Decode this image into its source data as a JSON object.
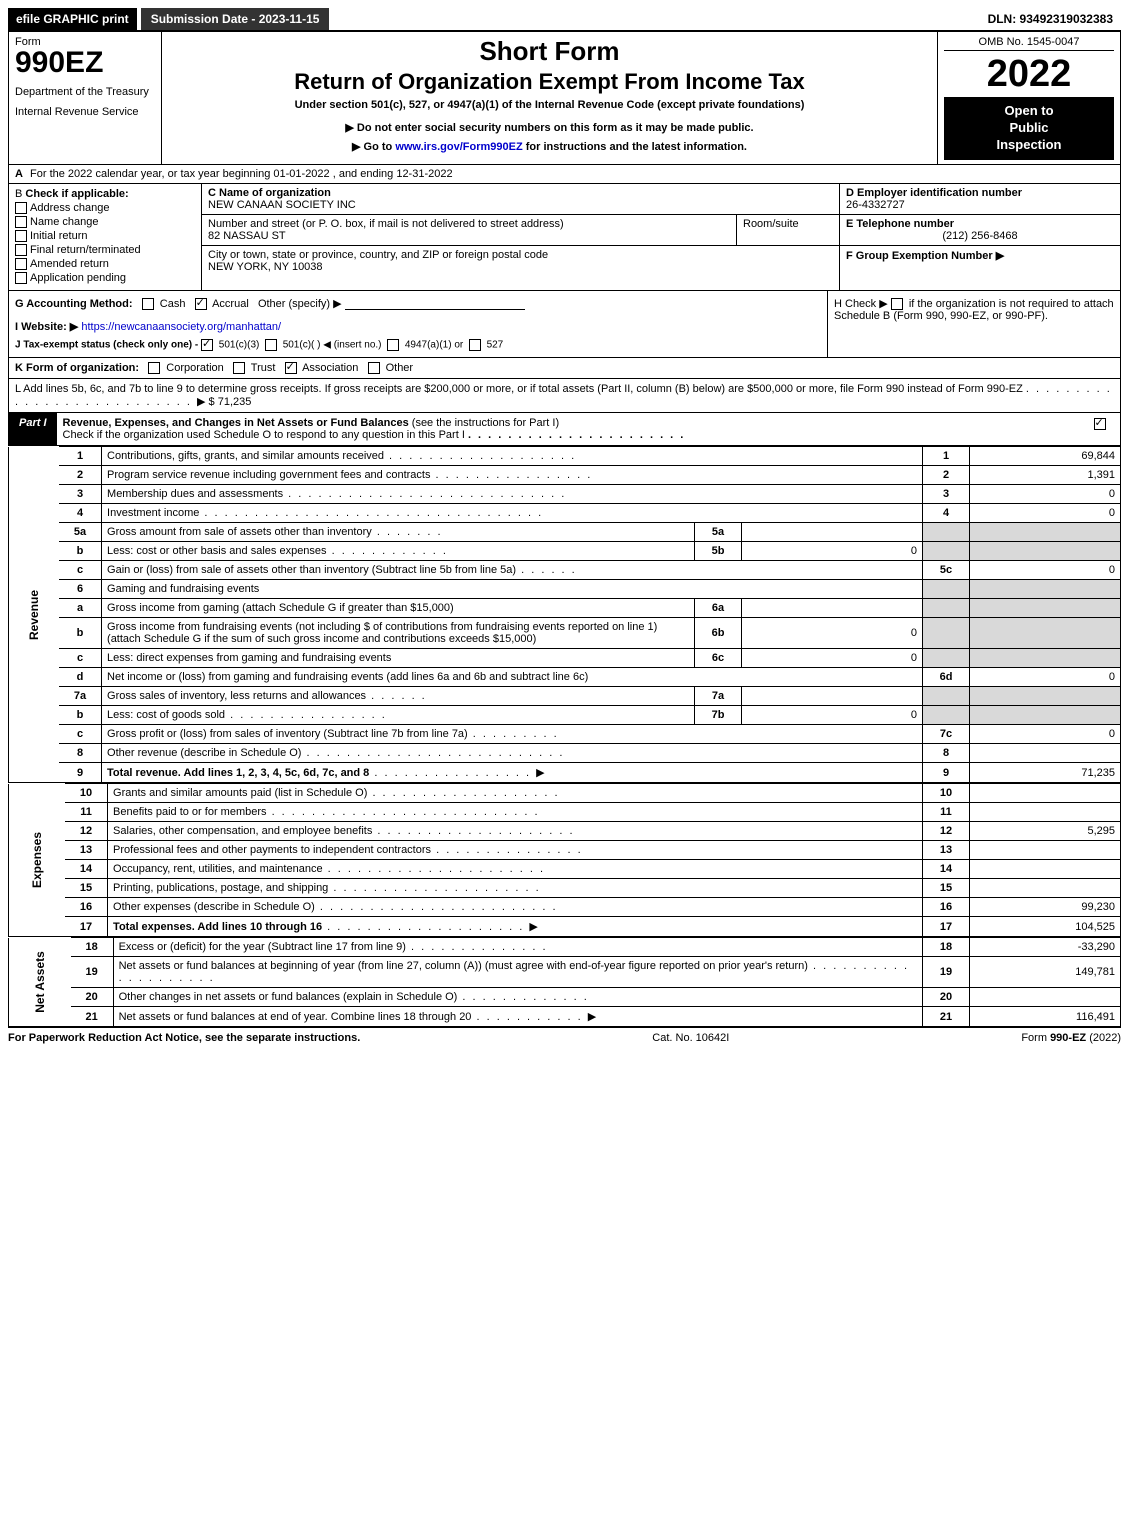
{
  "top": {
    "efile": "efile GRAPHIC print",
    "submission": "Submission Date - 2023-11-15",
    "dln": "DLN: 93492319032383"
  },
  "header": {
    "form_label": "Form",
    "form_no": "990EZ",
    "dept1": "Department of the Treasury",
    "dept2": "Internal Revenue Service",
    "short": "Short Form",
    "title": "Return of Organization Exempt From Income Tax",
    "under": "Under section 501(c), 527, or 4947(a)(1) of the Internal Revenue Code (except private foundations)",
    "notice1": "▶ Do not enter social security numbers on this form as it may be made public.",
    "notice2": "▶ Go to www.irs.gov/Form990EZ for instructions and the latest information.",
    "irs_link": "www.irs.gov/Form990EZ",
    "omb": "OMB No. 1545-0047",
    "year": "2022",
    "inspect1": "Open to",
    "inspect2": "Public",
    "inspect3": "Inspection"
  },
  "a": {
    "text": "For the 2022 calendar year, or tax year beginning 01-01-2022 , and ending 12-31-2022"
  },
  "b": {
    "head": "Check if applicable:",
    "opt1": "Address change",
    "opt2": "Name change",
    "opt3": "Initial return",
    "opt4": "Final return/terminated",
    "opt5": "Amended return",
    "opt6": "Application pending"
  },
  "c": {
    "name_lbl": "C Name of organization",
    "name": "NEW CANAAN SOCIETY INC",
    "street_lbl": "Number and street (or P. O. box, if mail is not delivered to street address)",
    "street": "82 NASSAU ST",
    "room_lbl": "Room/suite",
    "city_lbl": "City or town, state or province, country, and ZIP or foreign postal code",
    "city": "NEW YORK, NY  10038"
  },
  "d": {
    "lbl": "D Employer identification number",
    "val": "26-4332727"
  },
  "e": {
    "lbl": "E Telephone number",
    "val": "(212) 256-8468"
  },
  "f": {
    "lbl": "F Group Exemption Number  ▶"
  },
  "g": {
    "lbl": "G Accounting Method:",
    "cash": "Cash",
    "accrual": "Accrual",
    "other": "Other (specify) ▶"
  },
  "h": {
    "text1": "H  Check ▶",
    "text2": "if the organization is not required to attach Schedule B (Form 990, 990-EZ, or 990-PF)."
  },
  "i": {
    "lbl": "I Website: ▶",
    "url": "https://newcanaansociety.org/manhattan/"
  },
  "j": {
    "lbl": "J Tax-exempt status (check only one) -",
    "o1": "501(c)(3)",
    "o2": "501(c)(  )  ◀ (insert no.)",
    "o3": "4947(a)(1) or",
    "o4": "527"
  },
  "k": {
    "lbl": "K Form of organization:",
    "o1": "Corporation",
    "o2": "Trust",
    "o3": "Association",
    "o4": "Other"
  },
  "l": {
    "text": "L Add lines 5b, 6c, and 7b to line 9 to determine gross receipts. If gross receipts are $200,000 or more, or if total assets (Part II, column (B) below) are $500,000 or more, file Form 990 instead of Form 990-EZ",
    "amount": "$ 71,235"
  },
  "part1": {
    "tag": "Part I",
    "title": "Revenue, Expenses, and Changes in Net Assets or Fund Balances",
    "sub": "(see the instructions for Part I)",
    "sub2": "Check if the organization used Schedule O to respond to any question in this Part I"
  },
  "lines": [
    {
      "n": "1",
      "desc": "Contributions, gifts, grants, and similar amounts received",
      "col": "1",
      "val": "69,844"
    },
    {
      "n": "2",
      "desc": "Program service revenue including government fees and contracts",
      "col": "2",
      "val": "1,391"
    },
    {
      "n": "3",
      "desc": "Membership dues and assessments",
      "col": "3",
      "val": "0"
    },
    {
      "n": "4",
      "desc": "Investment income",
      "col": "4",
      "val": "0"
    },
    {
      "n": "5a",
      "desc": "Gross amount from sale of assets other than inventory",
      "sub": "5a",
      "subval": "",
      "shade_col": true
    },
    {
      "n": "b",
      "desc": "Less: cost or other basis and sales expenses",
      "sub": "5b",
      "subval": "0",
      "shade_col": true
    },
    {
      "n": "c",
      "desc": "Gain or (loss) from sale of assets other than inventory (Subtract line 5b from line 5a)",
      "col": "5c",
      "val": "0"
    },
    {
      "n": "6",
      "desc": "Gaming and fundraising events",
      "shade_col": true,
      "shade_val": true
    },
    {
      "n": "a",
      "desc": "Gross income from gaming (attach Schedule G if greater than $15,000)",
      "sub": "6a",
      "subval": "",
      "shade_col": true,
      "shade_val": true
    },
    {
      "n": "b",
      "desc": "Gross income from fundraising events (not including $                 of contributions from fundraising events reported on line 1) (attach Schedule G if the sum of such gross income and contributions exceeds $15,000)",
      "sub": "6b",
      "subval": "0",
      "shade_col": true,
      "shade_val": true
    },
    {
      "n": "c",
      "desc": "Less: direct expenses from gaming and fundraising events",
      "sub": "6c",
      "subval": "0",
      "shade_col": true,
      "shade_val": true
    },
    {
      "n": "d",
      "desc": "Net income or (loss) from gaming and fundraising events (add lines 6a and 6b and subtract line 6c)",
      "col": "6d",
      "val": "0"
    },
    {
      "n": "7a",
      "desc": "Gross sales of inventory, less returns and allowances",
      "sub": "7a",
      "subval": "",
      "shade_col": true
    },
    {
      "n": "b",
      "desc": "Less: cost of goods sold",
      "sub": "7b",
      "subval": "0",
      "shade_col": true
    },
    {
      "n": "c",
      "desc": "Gross profit or (loss) from sales of inventory (Subtract line 7b from line 7a)",
      "col": "7c",
      "val": "0"
    },
    {
      "n": "8",
      "desc": "Other revenue (describe in Schedule O)",
      "col": "8",
      "val": ""
    },
    {
      "n": "9",
      "desc": "Total revenue. Add lines 1, 2, 3, 4, 5c, 6d, 7c, and 8",
      "col": "9",
      "val": "71,235",
      "arrow": true,
      "bold": true
    }
  ],
  "expenses": [
    {
      "n": "10",
      "desc": "Grants and similar amounts paid (list in Schedule O)",
      "col": "10",
      "val": ""
    },
    {
      "n": "11",
      "desc": "Benefits paid to or for members",
      "col": "11",
      "val": ""
    },
    {
      "n": "12",
      "desc": "Salaries, other compensation, and employee benefits",
      "col": "12",
      "val": "5,295"
    },
    {
      "n": "13",
      "desc": "Professional fees and other payments to independent contractors",
      "col": "13",
      "val": ""
    },
    {
      "n": "14",
      "desc": "Occupancy, rent, utilities, and maintenance",
      "col": "14",
      "val": ""
    },
    {
      "n": "15",
      "desc": "Printing, publications, postage, and shipping",
      "col": "15",
      "val": ""
    },
    {
      "n": "16",
      "desc": "Other expenses (describe in Schedule O)",
      "col": "16",
      "val": "99,230"
    },
    {
      "n": "17",
      "desc": "Total expenses. Add lines 10 through 16",
      "col": "17",
      "val": "104,525",
      "arrow": true,
      "bold": true
    }
  ],
  "netassets": [
    {
      "n": "18",
      "desc": "Excess or (deficit) for the year (Subtract line 17 from line 9)",
      "col": "18",
      "val": "-33,290"
    },
    {
      "n": "19",
      "desc": "Net assets or fund balances at beginning of year (from line 27, column (A)) (must agree with end-of-year figure reported on prior year's return)",
      "col": "19",
      "val": "149,781"
    },
    {
      "n": "20",
      "desc": "Other changes in net assets or fund balances (explain in Schedule O)",
      "col": "20",
      "val": ""
    },
    {
      "n": "21",
      "desc": "Net assets or fund balances at end of year. Combine lines 18 through 20",
      "col": "21",
      "val": "116,491",
      "arrow": true
    }
  ],
  "side": {
    "revenue": "Revenue",
    "expenses": "Expenses",
    "netassets": "Net Assets"
  },
  "footer": {
    "left": "For Paperwork Reduction Act Notice, see the separate instructions.",
    "mid": "Cat. No. 10642I",
    "right_prefix": "Form ",
    "right_form": "990-EZ",
    "right_suffix": " (2022)"
  }
}
